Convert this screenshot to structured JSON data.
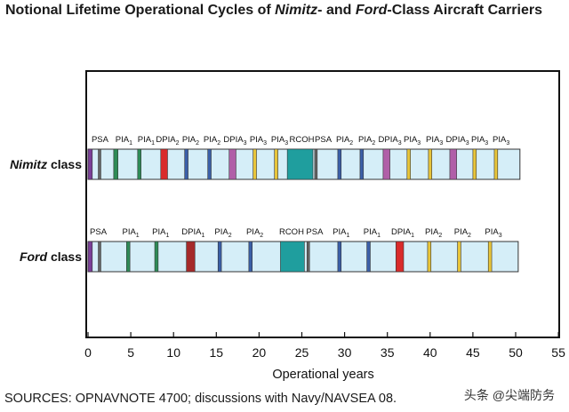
{
  "title": {
    "part1": "Notional Lifetime Operational Cycles of ",
    "nimitz": "Nimitz",
    "part2": "- and ",
    "ford": "Ford",
    "part3": "-Class Aircraft Carriers"
  },
  "source": "SOURCES: OPNAVNOTE 4700; discussions with Navy/NAVSEA 08.",
  "watermark": "头条 @尖端防务",
  "chart_data": {
    "type": "timeline",
    "xlabel": "Operational years",
    "xlim": [
      0,
      55
    ],
    "xticks": [
      0,
      5,
      10,
      15,
      20,
      25,
      30,
      35,
      40,
      45,
      50,
      55
    ],
    "colors": {
      "bar_fill": "#d5eef8",
      "PSA": "#7b3f98",
      "PIA": "#2e8b57",
      "PIA2": "#3b5fa8",
      "PIA3": "#e8c53a",
      "DPIA": "#d92b2b",
      "DPIA2": "#b05fa8",
      "DPIA3": "#b05fa8",
      "RCOH": "#1f9e9e",
      "FordDPIA1": "#a52a2a",
      "FordPIA1": "#2e8b57",
      "FordPIA2": "#3b5fa8",
      "FordPIA3": "#e8c53a"
    },
    "rows": [
      {
        "name": "Nimitz",
        "suffix": " class",
        "end": 50.5,
        "events": [
          {
            "label": "PSA",
            "sub": "",
            "start": 0.0,
            "end": 0.5,
            "color": "PSA"
          },
          {
            "label": "PSA",
            "sub": "",
            "start": 1.2,
            "end": 1.5,
            "color": "divider"
          },
          {
            "label": "PIA",
            "sub": "1",
            "start": 3.0,
            "end": 3.5,
            "color": "PIA"
          },
          {
            "label": "PIA",
            "sub": "1",
            "start": 5.8,
            "end": 6.2,
            "color": "PIA"
          },
          {
            "label": "DPIA",
            "sub": "2",
            "start": 8.5,
            "end": 9.3,
            "color": "DPIA"
          },
          {
            "label": "PIA",
            "sub": "2",
            "start": 11.3,
            "end": 11.7,
            "color": "PIA2"
          },
          {
            "label": "PIA",
            "sub": "2",
            "start": 14.0,
            "end": 14.4,
            "color": "PIA2"
          },
          {
            "label": "DPIA",
            "sub": "3",
            "start": 16.5,
            "end": 17.3,
            "color": "DPIA2"
          },
          {
            "label": "PIA",
            "sub": "3",
            "start": 19.3,
            "end": 19.7,
            "color": "PIA3"
          },
          {
            "label": "PIA",
            "sub": "3",
            "start": 21.8,
            "end": 22.2,
            "color": "PIA3"
          },
          {
            "label": "RCOH",
            "sub": "",
            "start": 23.3,
            "end": 26.3,
            "color": "RCOH"
          },
          {
            "label": "PSA",
            "sub": "",
            "start": 26.5,
            "end": 26.8,
            "color": "divider"
          },
          {
            "label": "PIA",
            "sub": "2",
            "start": 29.2,
            "end": 29.6,
            "color": "PIA2"
          },
          {
            "label": "PIA",
            "sub": "2",
            "start": 31.8,
            "end": 32.2,
            "color": "PIA2"
          },
          {
            "label": "DPIA",
            "sub": "3",
            "start": 34.5,
            "end": 35.3,
            "color": "DPIA2"
          },
          {
            "label": "PIA",
            "sub": "3",
            "start": 37.3,
            "end": 37.7,
            "color": "PIA3"
          },
          {
            "label": "PIA",
            "sub": "3",
            "start": 39.8,
            "end": 40.2,
            "color": "PIA3"
          },
          {
            "label": "DPIA",
            "sub": "3",
            "start": 42.3,
            "end": 43.1,
            "color": "DPIA2"
          },
          {
            "label": "PIA",
            "sub": "3",
            "start": 45.0,
            "end": 45.4,
            "color": "PIA3"
          },
          {
            "label": "PIA",
            "sub": "3",
            "start": 47.5,
            "end": 47.9,
            "color": "PIA3"
          }
        ]
      },
      {
        "name": "Ford",
        "suffix": " class",
        "end": 50.3,
        "events": [
          {
            "label": "PSA",
            "sub": "",
            "start": 0.0,
            "end": 0.5,
            "color": "PSA"
          },
          {
            "label": "",
            "sub": "",
            "start": 1.2,
            "end": 1.5,
            "color": "divider"
          },
          {
            "label": "PIA",
            "sub": "1",
            "start": 4.5,
            "end": 4.9,
            "color": "FordPIA1"
          },
          {
            "label": "PIA",
            "sub": "1",
            "start": 7.8,
            "end": 8.2,
            "color": "FordPIA1"
          },
          {
            "label": "DPIA",
            "sub": "1",
            "start": 11.5,
            "end": 12.5,
            "color": "FordDPIA1"
          },
          {
            "label": "PIA",
            "sub": "2",
            "start": 15.2,
            "end": 15.6,
            "color": "FordPIA2"
          },
          {
            "label": "PIA",
            "sub": "2",
            "start": 18.8,
            "end": 19.2,
            "color": "FordPIA2"
          },
          {
            "label": "RCOH",
            "sub": "",
            "start": 22.5,
            "end": 25.3,
            "color": "RCOH"
          },
          {
            "label": "PSA",
            "sub": "",
            "start": 25.6,
            "end": 25.9,
            "color": "divider"
          },
          {
            "label": "PIA",
            "sub": "1",
            "start": 29.2,
            "end": 29.6,
            "color": "FordPIA2"
          },
          {
            "label": "PIA",
            "sub": "1",
            "start": 32.6,
            "end": 33.0,
            "color": "FordPIA2"
          },
          {
            "label": "DPIA",
            "sub": "1",
            "start": 36.0,
            "end": 36.9,
            "color": "DPIA"
          },
          {
            "label": "PIA",
            "sub": "2",
            "start": 39.7,
            "end": 40.1,
            "color": "FordPIA3"
          },
          {
            "label": "PIA",
            "sub": "2",
            "start": 43.2,
            "end": 43.6,
            "color": "FordPIA3"
          },
          {
            "label": "PIA",
            "sub": "3",
            "start": 46.8,
            "end": 47.2,
            "color": "FordPIA3"
          }
        ]
      }
    ],
    "labels": [
      {
        "row": 0,
        "items": [
          {
            "t": "PSA",
            "s": "",
            "x": 1.4
          },
          {
            "t": "PIA",
            "s": "1",
            "x": 4.2
          },
          {
            "t": "PIA",
            "s": "1",
            "x": 6.8
          },
          {
            "t": "DPIA",
            "s": "2",
            "x": 9.3
          },
          {
            "t": "PIA",
            "s": "2",
            "x": 12.0
          },
          {
            "t": "PIA",
            "s": "2",
            "x": 14.5
          },
          {
            "t": "DPIA",
            "s": "3",
            "x": 17.2
          },
          {
            "t": "PIA",
            "s": "3",
            "x": 19.9
          },
          {
            "t": "PIA",
            "s": "3",
            "x": 22.4
          },
          {
            "t": "RCOH",
            "s": "",
            "x": 25.0
          },
          {
            "t": "PSA",
            "s": "",
            "x": 27.5
          },
          {
            "t": "PIA",
            "s": "2",
            "x": 30.0
          },
          {
            "t": "PIA",
            "s": "2",
            "x": 32.6
          },
          {
            "t": "DPIA",
            "s": "3",
            "x": 35.3
          },
          {
            "t": "PIA",
            "s": "3",
            "x": 37.9
          },
          {
            "t": "PIA",
            "s": "3",
            "x": 40.5
          },
          {
            "t": "DPIA",
            "s": "3",
            "x": 43.2
          },
          {
            "t": "PIA",
            "s": "3",
            "x": 45.8
          },
          {
            "t": "PIA",
            "s": "3",
            "x": 48.3
          }
        ]
      },
      {
        "row": 1,
        "items": [
          {
            "t": "PSA",
            "s": "",
            "x": 1.2
          },
          {
            "t": "PIA",
            "s": "1",
            "x": 5.0
          },
          {
            "t": "PIA",
            "s": "1",
            "x": 8.5
          },
          {
            "t": "DPIA",
            "s": "1",
            "x": 12.3
          },
          {
            "t": "PIA",
            "s": "2",
            "x": 15.8
          },
          {
            "t": "PIA",
            "s": "2",
            "x": 19.5
          },
          {
            "t": "RCOH",
            "s": "",
            "x": 23.8
          },
          {
            "t": "PSA",
            "s": "",
            "x": 26.5
          },
          {
            "t": "PIA",
            "s": "1",
            "x": 29.6
          },
          {
            "t": "PIA",
            "s": "1",
            "x": 33.2
          },
          {
            "t": "DPIA",
            "s": "1",
            "x": 36.8
          },
          {
            "t": "PIA",
            "s": "2",
            "x": 40.4
          },
          {
            "t": "PIA",
            "s": "2",
            "x": 43.8
          },
          {
            "t": "PIA",
            "s": "3",
            "x": 47.4
          }
        ]
      }
    ]
  }
}
